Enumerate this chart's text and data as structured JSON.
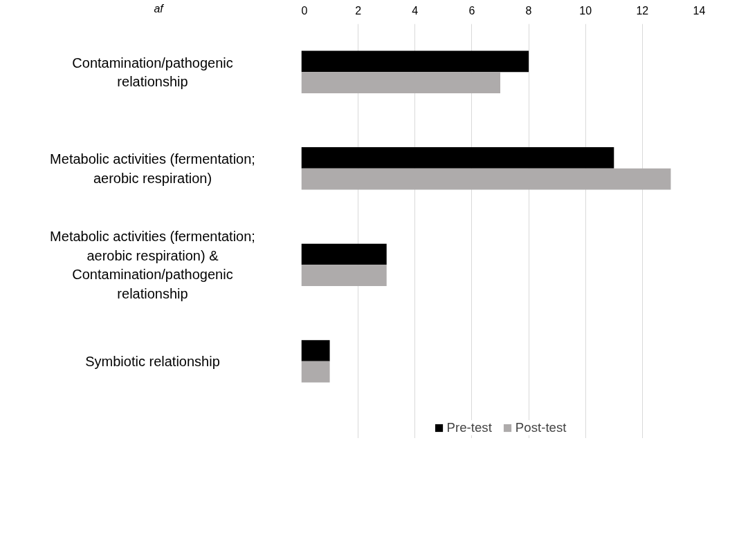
{
  "chart_data": {
    "type": "bar",
    "orientation": "horizontal",
    "xlabel": "af",
    "categories": [
      "Contamination/pathogenic relationship",
      "Metabolic activities (fermentation; aerobic respiration)",
      "Metabolic activities (fermentation; aerobic respiration) & Contamination/pathogenic relationship",
      "Symbiotic relationship"
    ],
    "series": [
      {
        "name": "Pre-test",
        "color": "#000000",
        "values": [
          8,
          11,
          3,
          1
        ]
      },
      {
        "name": "Post-test",
        "color": "#aeabab",
        "values": [
          7,
          13,
          3,
          1
        ]
      }
    ],
    "xlim": [
      0,
      14
    ],
    "xticks": [
      0,
      2,
      4,
      6,
      8,
      10,
      12,
      14
    ],
    "grid": "x",
    "legend": "bottom"
  }
}
